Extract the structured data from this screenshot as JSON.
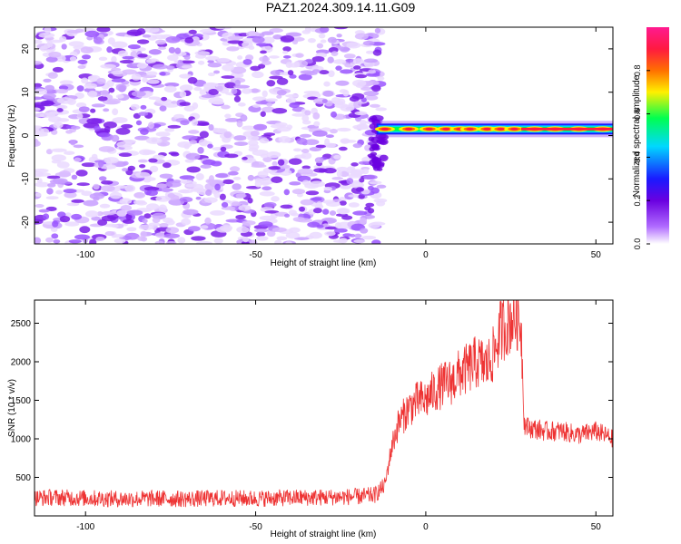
{
  "figure": {
    "title": "PAZ1.2024.309.14.11.G09"
  },
  "chart_data": [
    {
      "type": "heatmap",
      "title": "PAZ1.2024.309.14.11.G09",
      "xlabel": "Height of straight line (km)",
      "ylabel": "Frequency (Hz)",
      "xlim": [
        -115,
        55
      ],
      "ylim": [
        -25,
        25
      ],
      "xticks": [
        -100,
        -50,
        0,
        50
      ],
      "yticks": [
        -20,
        -10,
        0,
        10,
        20
      ],
      "colorbar": {
        "label": "Normalized spectral amplitude",
        "range": [
          0,
          1
        ],
        "ticks": [
          0.0,
          0.2,
          0.4,
          0.6,
          0.8
        ],
        "colors": [
          "#ffffff",
          "#b06bff",
          "#6a00e0",
          "#1a1aff",
          "#00d8ff",
          "#00ff50",
          "#fff000",
          "#ff7000",
          "#ff1a40",
          "#ff1a90"
        ]
      },
      "features": {
        "noise_region_x": [
          -115,
          -15
        ],
        "noise_amplitude_range": [
          0.0,
          0.15
        ],
        "signal_region_x": [
          -15,
          55
        ],
        "signal_frequency_hz": 1.5,
        "signal_peak_amplitude": 0.95
      }
    },
    {
      "type": "line",
      "xlabel": "Height of straight line (km)",
      "ylabel": "SNR (10 * v/v)",
      "xlim": [
        -115,
        55
      ],
      "ylim": [
        0,
        2800
      ],
      "xticks": [
        -100,
        -50,
        0,
        50
      ],
      "yticks": [
        500,
        1000,
        1500,
        2000,
        2500
      ],
      "series": [
        {
          "color": "#ee3333",
          "x": [
            -115,
            -110,
            -100,
            -90,
            -80,
            -70,
            -60,
            -50,
            -40,
            -30,
            -20,
            -15,
            -12,
            -10,
            -8,
            -5,
            -2,
            0,
            2,
            5,
            8,
            10,
            12,
            15,
            18,
            20,
            22,
            25,
            27,
            28,
            29,
            30,
            35,
            40,
            45,
            50,
            55
          ],
          "values": [
            230,
            240,
            230,
            220,
            225,
            220,
            230,
            225,
            235,
            240,
            250,
            270,
            400,
            900,
            1200,
            1400,
            1500,
            1500,
            1600,
            1700,
            1750,
            1850,
            1900,
            2000,
            1950,
            2100,
            2400,
            2550,
            2600,
            2500,
            1200,
            1150,
            1100,
            1100,
            1050,
            1100,
            1000
          ]
        }
      ]
    }
  ]
}
